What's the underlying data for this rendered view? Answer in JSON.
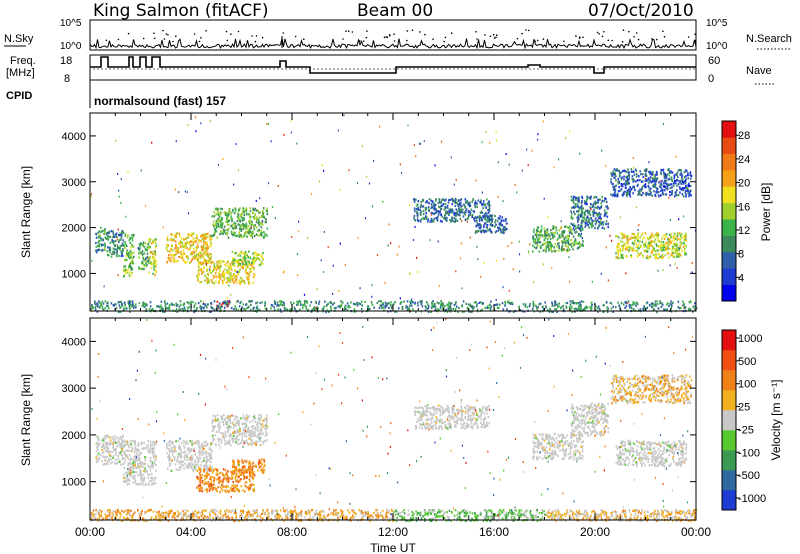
{
  "header": {
    "station": "King Salmon (fitACF)",
    "beam": "Beam 00",
    "date": "07/Oct/2010"
  },
  "strip_labels": {
    "nsky": "N.Sky",
    "freq_line1": "Freq.",
    "freq_line2": "[MHz]",
    "cpid": "CPID",
    "nsearch": "N.Search",
    "nave": "Nave",
    "nsky_ticks": [
      "10^5",
      "10^0"
    ],
    "nsearch_ticks": [
      "10^5",
      "10^0"
    ],
    "freq_ticks": [
      "18",
      "8"
    ],
    "nave_ticks": [
      "60",
      "0"
    ],
    "cpid_text": "normalsound (fast) 157"
  },
  "chart_data": [
    {
      "type": "heatmap",
      "name": "power",
      "xlabel": "Time UT",
      "ylabel": "Slant Range [km]",
      "x_ticks": [
        "00:00",
        "04:00",
        "08:00",
        "12:00",
        "16:00",
        "20:00",
        "00:00"
      ],
      "xlim_hours": [
        0,
        24
      ],
      "y_ticks": [
        "1000",
        "2000",
        "3000",
        "4000"
      ],
      "ylim_km": [
        180,
        4500
      ],
      "colorbar_label": "Power [dB]",
      "colorbar_ticks": [
        "4",
        "8",
        "12",
        "16",
        "20",
        "24",
        "28"
      ],
      "colorbar_colors": [
        "#0000ee",
        "#1e3cd2",
        "#2e5fa8",
        "#3a8a5a",
        "#3cb24a",
        "#9fd02c",
        "#f0e020",
        "#f5a21a",
        "#f07a18",
        "#e84a14",
        "#e21010"
      ],
      "regions": [
        {
          "t0": 0.2,
          "t1": 0.6,
          "r0": 1480,
          "r1": 2020,
          "level": 0.32
        },
        {
          "t0": 0.6,
          "t1": 1.3,
          "r0": 1380,
          "r1": 1950,
          "level": 0.28
        },
        {
          "t0": 1.3,
          "t1": 1.7,
          "r0": 950,
          "r1": 1900,
          "level": 0.45
        },
        {
          "t0": 1.9,
          "t1": 2.3,
          "r0": 1100,
          "r1": 1700,
          "level": 0.38
        },
        {
          "t0": 2.3,
          "t1": 2.6,
          "r0": 950,
          "r1": 1800,
          "level": 0.55
        },
        {
          "t0": 3.0,
          "t1": 4.8,
          "r0": 1250,
          "r1": 1900,
          "level": 0.62
        },
        {
          "t0": 4.8,
          "t1": 7.0,
          "r0": 1800,
          "r1": 2450,
          "level": 0.4
        },
        {
          "t0": 4.2,
          "t1": 6.5,
          "r0": 800,
          "r1": 1300,
          "level": 0.6
        },
        {
          "t0": 5.6,
          "t1": 6.9,
          "r0": 1200,
          "r1": 1500,
          "level": 0.5
        },
        {
          "t0": 5.0,
          "t1": 5.5,
          "r0": 280,
          "r1": 420,
          "level": 0.95
        },
        {
          "t0": 12.8,
          "t1": 15.8,
          "r0": 2150,
          "r1": 2650,
          "level": 0.22
        },
        {
          "t0": 15.2,
          "t1": 16.5,
          "r0": 1900,
          "r1": 2300,
          "level": 0.2
        },
        {
          "t0": 17.5,
          "t1": 19.5,
          "r0": 1500,
          "r1": 2050,
          "level": 0.38
        },
        {
          "t0": 19.0,
          "t1": 20.5,
          "r0": 2000,
          "r1": 2700,
          "level": 0.25
        },
        {
          "t0": 20.8,
          "t1": 23.6,
          "r0": 1350,
          "r1": 1900,
          "level": 0.55
        },
        {
          "t0": 20.6,
          "t1": 23.8,
          "r0": 2700,
          "r1": 3300,
          "level": 0.18
        },
        {
          "t0": 0.0,
          "t1": 24.0,
          "r0": 180,
          "r1": 420,
          "level": 0.3
        }
      ]
    },
    {
      "type": "heatmap",
      "name": "velocity",
      "xlabel": "Time UT",
      "ylabel": "Slant Range [km]",
      "x_ticks": [
        "00:00",
        "04:00",
        "08:00",
        "12:00",
        "16:00",
        "20:00",
        "00:00"
      ],
      "xlim_hours": [
        0,
        24
      ],
      "y_ticks": [
        "1000",
        "2000",
        "3000",
        "4000"
      ],
      "ylim_km": [
        180,
        4500
      ],
      "colorbar_label": "Velocity [m s⁻¹]",
      "colorbar_ticks": [
        "1000",
        "500",
        "100",
        "25",
        "-25",
        "-100",
        "-500",
        "-1000"
      ],
      "colorbar_colors": [
        "#1e3cd2",
        "#2e6aa0",
        "#3a9a50",
        "#58c830",
        "#c8c8c8",
        "#f0b020",
        "#f08018",
        "#f05014",
        "#e21010"
      ],
      "regions": [
        {
          "t0": 0.2,
          "t1": 1.3,
          "r0": 1380,
          "r1": 2020,
          "level": 0.5
        },
        {
          "t0": 1.3,
          "t1": 2.6,
          "r0": 950,
          "r1": 1900,
          "level": 0.5
        },
        {
          "t0": 3.0,
          "t1": 4.8,
          "r0": 1250,
          "r1": 1900,
          "level": 0.5
        },
        {
          "t0": 4.8,
          "t1": 7.0,
          "r0": 1800,
          "r1": 2450,
          "level": 0.5
        },
        {
          "t0": 4.2,
          "t1": 6.5,
          "r0": 800,
          "r1": 1300,
          "level": 0.72
        },
        {
          "t0": 5.6,
          "t1": 6.9,
          "r0": 1200,
          "r1": 1500,
          "level": 0.72
        },
        {
          "t0": 12.8,
          "t1": 15.8,
          "r0": 2150,
          "r1": 2650,
          "level": 0.5
        },
        {
          "t0": 17.5,
          "t1": 19.5,
          "r0": 1500,
          "r1": 2050,
          "level": 0.5
        },
        {
          "t0": 19.0,
          "t1": 20.5,
          "r0": 2000,
          "r1": 2700,
          "level": 0.5
        },
        {
          "t0": 20.8,
          "t1": 23.6,
          "r0": 1350,
          "r1": 1900,
          "level": 0.5
        },
        {
          "t0": 20.6,
          "t1": 23.8,
          "r0": 2700,
          "r1": 3300,
          "level": 0.6
        },
        {
          "t0": 0.0,
          "t1": 12.0,
          "r0": 180,
          "r1": 420,
          "level": 0.62
        },
        {
          "t0": 12.0,
          "t1": 18.0,
          "r0": 180,
          "r1": 420,
          "level": 0.38
        },
        {
          "t0": 18.0,
          "t1": 24.0,
          "r0": 180,
          "r1": 420,
          "level": 0.6
        }
      ]
    }
  ]
}
